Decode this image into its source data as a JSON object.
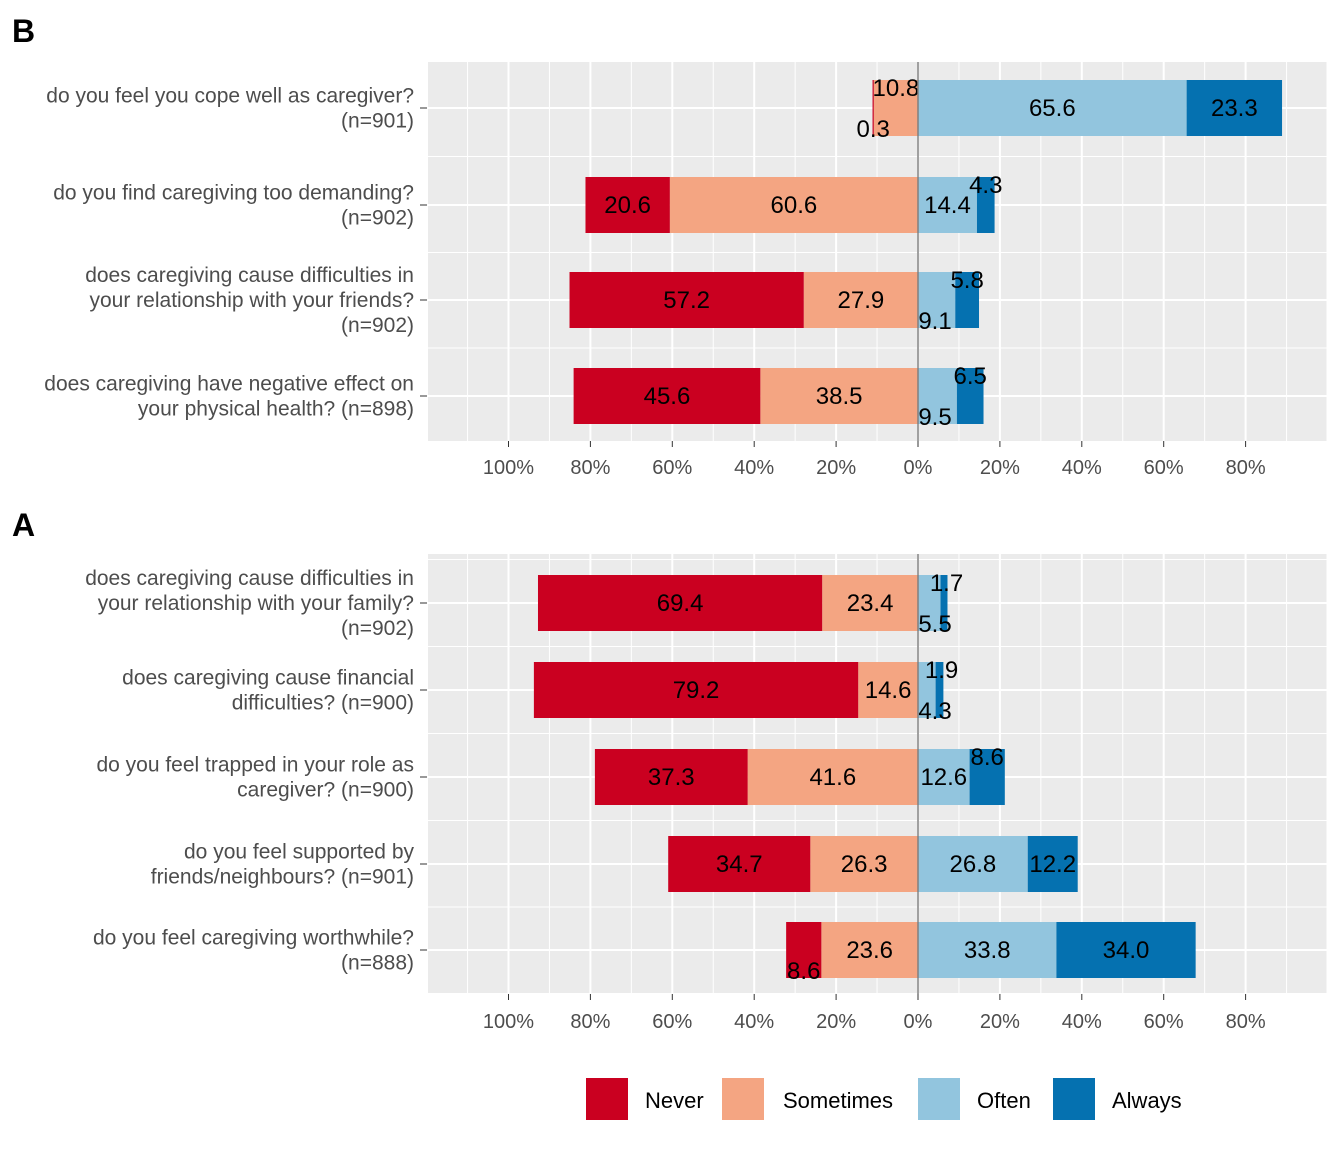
{
  "colors": {
    "Never": "#ca0020",
    "Sometimes": "#f4a582",
    "Often": "#92c5de",
    "Always": "#0571b0",
    "panel_bg": "#ebebeb",
    "grid_major": "#ffffff",
    "zero_line": "#808080"
  },
  "legend": {
    "items": [
      "Never",
      "Sometimes",
      "Often",
      "Always"
    ],
    "position": "bottom"
  },
  "chart_data": [
    {
      "panel_label": "B",
      "type": "bar",
      "orientation": "horizontal-diverging-stacked",
      "x_ticks": [
        "100%",
        "80%",
        "60%",
        "40%",
        "20%",
        "0%",
        "20%",
        "40%",
        "60%",
        "80%"
      ],
      "xlim": [
        -100,
        100
      ],
      "grid": true,
      "categories": [
        [
          "do you feel you cope well as caregiver?",
          "(n=901)"
        ],
        [
          "do you find caregiving too demanding?",
          "(n=902)"
        ],
        [
          "does caregiving cause difficulties in",
          "your relationship with your friends?",
          "(n=902)"
        ],
        [
          "does caregiving have negative effect on",
          "your physical health? (n=898)"
        ]
      ],
      "series": [
        {
          "name": "Never",
          "values": [
            0.3,
            20.6,
            57.2,
            45.6
          ]
        },
        {
          "name": "Sometimes",
          "values": [
            10.8,
            60.6,
            27.9,
            38.5
          ]
        },
        {
          "name": "Often",
          "values": [
            65.6,
            14.4,
            9.1,
            9.5
          ]
        },
        {
          "name": "Always",
          "values": [
            23.3,
            4.3,
            5.8,
            6.5
          ]
        }
      ]
    },
    {
      "panel_label": "A",
      "type": "bar",
      "orientation": "horizontal-diverging-stacked",
      "x_ticks": [
        "100%",
        "80%",
        "60%",
        "40%",
        "20%",
        "0%",
        "20%",
        "40%",
        "60%",
        "80%"
      ],
      "xlim": [
        -100,
        100
      ],
      "grid": true,
      "categories": [
        [
          "does caregiving cause difficulties in",
          "your relationship with your family?",
          "(n=902)"
        ],
        [
          "does caregiving cause financial",
          "difficulties? (n=900)"
        ],
        [
          "do you feel trapped in your role as",
          "caregiver? (n=900)"
        ],
        [
          "do you feel supported by",
          "friends/neighbours? (n=901)"
        ],
        [
          "do you feel caregiving worthwhile?",
          "(n=888)"
        ]
      ],
      "series": [
        {
          "name": "Never",
          "values": [
            69.4,
            79.2,
            37.3,
            34.7,
            8.6
          ]
        },
        {
          "name": "Sometimes",
          "values": [
            23.4,
            14.6,
            41.6,
            26.3,
            23.6
          ]
        },
        {
          "name": "Often",
          "values": [
            5.5,
            4.3,
            12.6,
            26.8,
            33.8
          ]
        },
        {
          "name": "Always",
          "values": [
            1.7,
            1.9,
            8.6,
            12.2,
            34.0
          ]
        }
      ]
    }
  ]
}
